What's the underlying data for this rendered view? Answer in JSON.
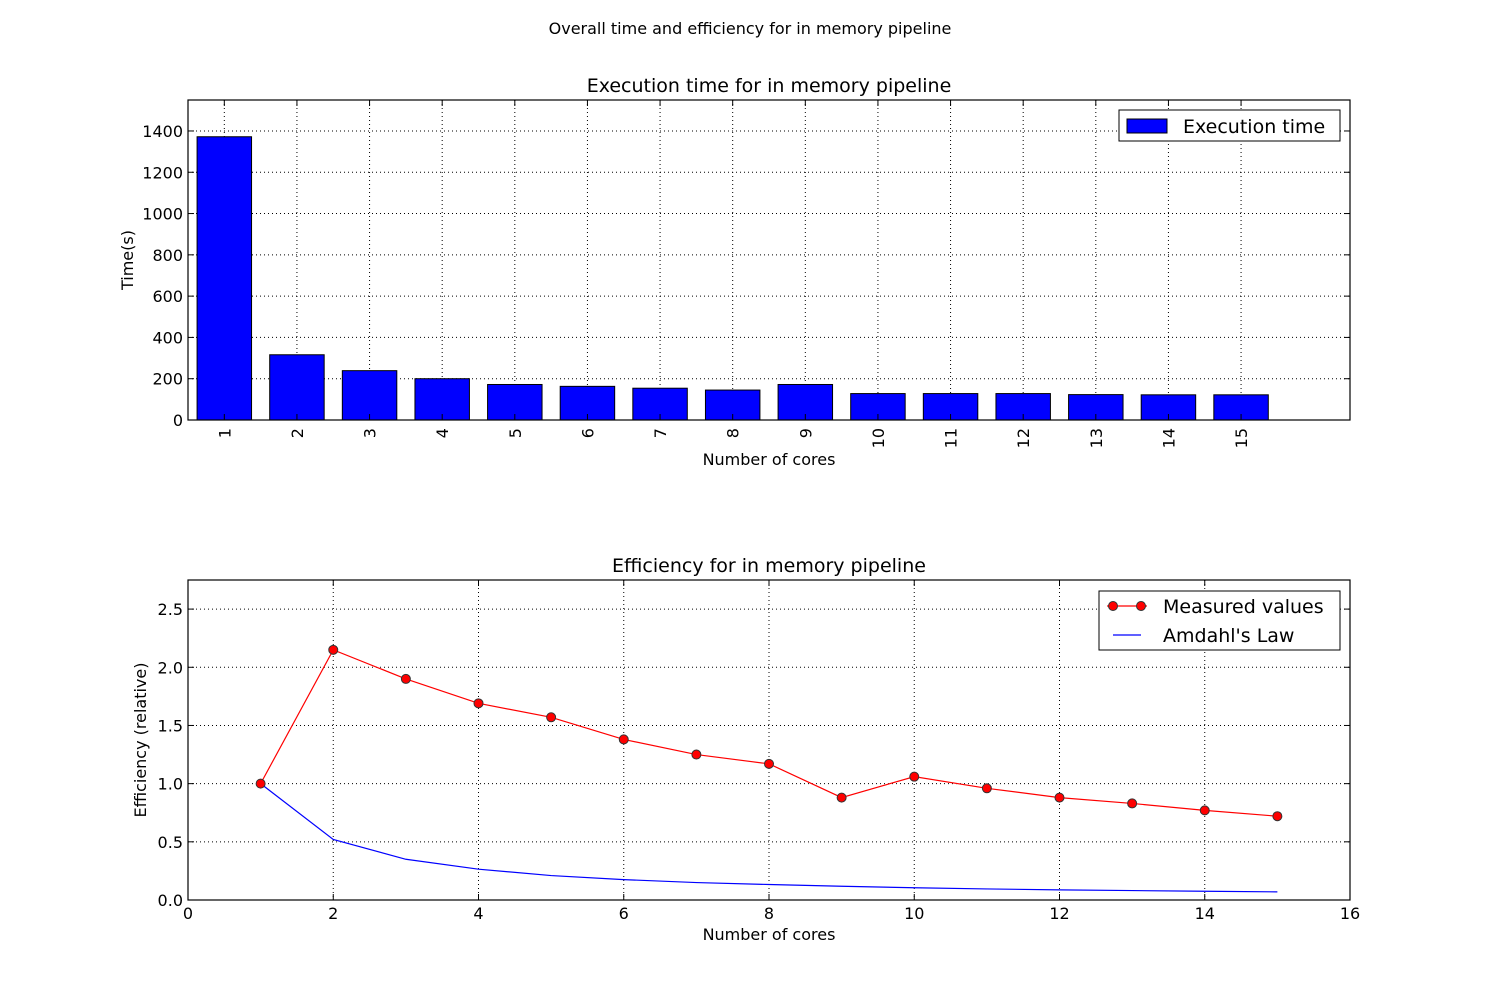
{
  "figure": {
    "suptitle": "Overall time and efficiency for in memory pipeline"
  },
  "chart_data": [
    {
      "type": "bar",
      "title": "Execution time for in memory pipeline",
      "xlabel": "Number of cores",
      "ylabel": "Time(s)",
      "categories": [
        "1",
        "2",
        "3",
        "4",
        "5",
        "6",
        "7",
        "8",
        "9",
        "10",
        "11",
        "12",
        "13",
        "14",
        "15"
      ],
      "series": [
        {
          "name": "Execution time",
          "values": [
            1372,
            316,
            239,
            200,
            172,
            163,
            154,
            145,
            172,
            128,
            128,
            128,
            123,
            122,
            122
          ],
          "color": "#0000ff"
        }
      ],
      "ylim": [
        0,
        1550
      ],
      "yticks": [
        0,
        200,
        400,
        600,
        800,
        1000,
        1200,
        1400
      ],
      "grid": true,
      "legend": "top-right"
    },
    {
      "type": "line",
      "title": "Efficiency for in memory pipeline",
      "xlabel": "Number of cores",
      "ylabel": "Efficiency (relative)",
      "x": [
        1,
        2,
        3,
        4,
        5,
        6,
        7,
        8,
        9,
        10,
        11,
        12,
        13,
        14,
        15
      ],
      "series": [
        {
          "name": "Measured values",
          "values": [
            1.0,
            2.15,
            1.9,
            1.69,
            1.57,
            1.38,
            1.25,
            1.17,
            0.88,
            1.06,
            0.96,
            0.88,
            0.83,
            0.77,
            0.72
          ],
          "color": "#ff0000",
          "marker": "circle"
        },
        {
          "name": "Amdahl's Law",
          "values": [
            1.0,
            0.52,
            0.35,
            0.265,
            0.21,
            0.175,
            0.15,
            0.133,
            0.118,
            0.105,
            0.095,
            0.087,
            0.081,
            0.075,
            0.07
          ],
          "color": "#0000ff",
          "marker": "none"
        }
      ],
      "xlim": [
        0,
        16
      ],
      "ylim": [
        0,
        2.75
      ],
      "xticks": [
        0,
        2,
        4,
        6,
        8,
        10,
        12,
        14,
        16
      ],
      "yticks": [
        "0.0",
        "0.5",
        "1.0",
        "1.5",
        "2.0",
        "2.5"
      ],
      "grid": true,
      "legend": "top-right"
    }
  ]
}
